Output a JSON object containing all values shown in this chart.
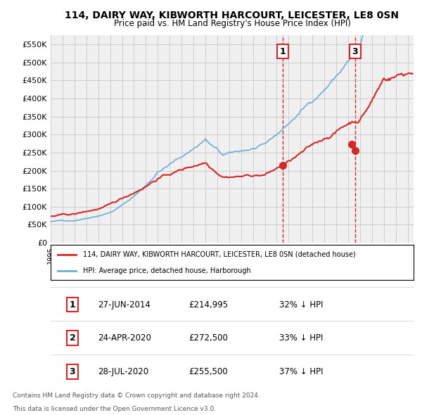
{
  "title1": "114, DAIRY WAY, KIBWORTH HARCOURT, LEICESTER, LE8 0SN",
  "title2": "Price paid vs. HM Land Registry's House Price Index (HPI)",
  "ylabel": "",
  "ylim": [
    0,
    575000
  ],
  "yticks": [
    0,
    50000,
    100000,
    150000,
    200000,
    250000,
    300000,
    350000,
    400000,
    450000,
    500000,
    550000
  ],
  "xlim_start": 1995.0,
  "xlim_end": 2025.5,
  "legend_line1": "114, DAIRY WAY, KIBWORTH HARCOURT, LEICESTER, LE8 0SN (detached house)",
  "legend_line2": "HPI: Average price, detached house, Harborough",
  "sale1_date": 2014.49,
  "sale1_price": 214995,
  "sale1_label": "1",
  "sale2_date": 2020.31,
  "sale2_price": 272500,
  "sale2_label": "2",
  "sale3_date": 2020.57,
  "sale3_price": 255500,
  "sale3_label": "3",
  "table_rows": [
    {
      "num": "1",
      "date": "27-JUN-2014",
      "price": "£214,995",
      "pct": "32% ↓ HPI"
    },
    {
      "num": "2",
      "date": "24-APR-2020",
      "price": "£272,500",
      "pct": "33% ↓ HPI"
    },
    {
      "num": "3",
      "date": "28-JUL-2020",
      "price": "£255,500",
      "pct": "37% ↓ HPI"
    }
  ],
  "footer1": "Contains HM Land Registry data © Crown copyright and database right 2024.",
  "footer2": "This data is licensed under the Open Government Licence v3.0.",
  "hpi_color": "#6baed6",
  "price_color": "#d62728",
  "grid_color": "#cccccc",
  "bg_color": "#f0f0f0"
}
